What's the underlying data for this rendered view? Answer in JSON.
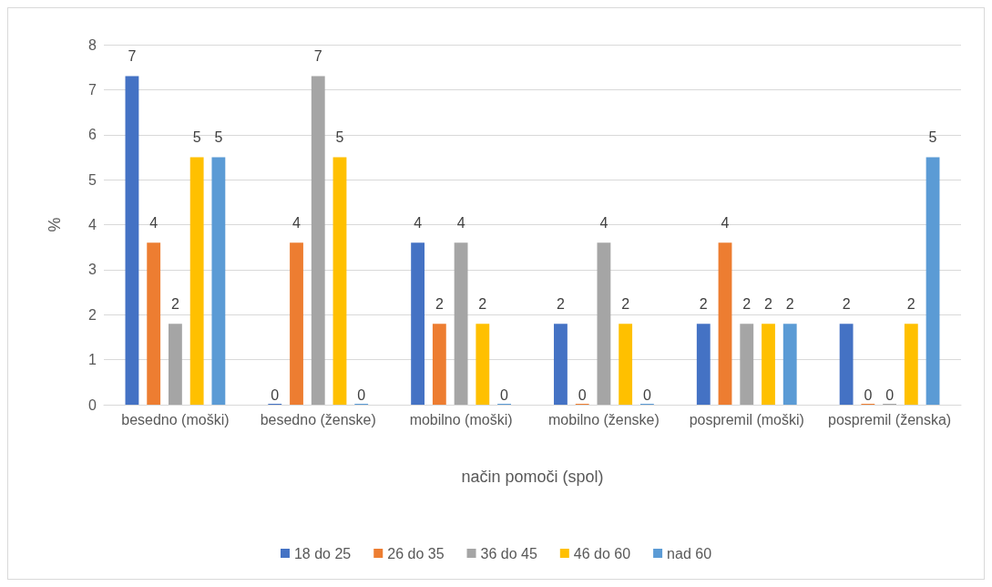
{
  "chart_data": {
    "type": "bar",
    "xlabel": "način pomoči (spol)",
    "ylabel": "%",
    "categories": [
      "besedno (moški)",
      "besedno (ženske)",
      "mobilno (moški)",
      "mobilno (ženske)",
      "pospremil (moški)",
      "pospremil (ženska)"
    ],
    "series": [
      {
        "name": "18 do 25",
        "color": "#4472c4",
        "values": [
          7.3,
          0,
          3.6,
          1.8,
          1.8,
          1.8
        ],
        "value_labels": [
          "7",
          "0",
          "4",
          "2",
          "2",
          "2"
        ]
      },
      {
        "name": "26 do 35",
        "color": "#ed7d31",
        "values": [
          3.6,
          3.6,
          1.8,
          0,
          3.6,
          0
        ],
        "value_labels": [
          "4",
          "4",
          "2",
          "0",
          "4",
          "0"
        ]
      },
      {
        "name": "36 do 45",
        "color": "#a5a5a5",
        "values": [
          1.8,
          7.3,
          3.6,
          3.6,
          1.8,
          0
        ],
        "value_labels": [
          "2",
          "7",
          "4",
          "4",
          "2",
          "0"
        ]
      },
      {
        "name": "46 do 60",
        "color": "#ffc000",
        "values": [
          5.5,
          5.5,
          1.8,
          1.8,
          1.8,
          1.8
        ],
        "value_labels": [
          "5",
          "5",
          "2",
          "2",
          "2",
          "2"
        ]
      },
      {
        "name": "nad 60",
        "color": "#5b9bd5",
        "values": [
          5.5,
          0,
          0,
          0,
          1.8,
          5.5
        ],
        "value_labels": [
          "5",
          "0",
          "0",
          "0",
          "2",
          "5"
        ]
      }
    ],
    "ylim": [
      0,
      8
    ],
    "yticks": [
      0,
      1,
      2,
      3,
      4,
      5,
      6,
      7,
      8
    ],
    "grid": "y",
    "legend": "bottom"
  }
}
